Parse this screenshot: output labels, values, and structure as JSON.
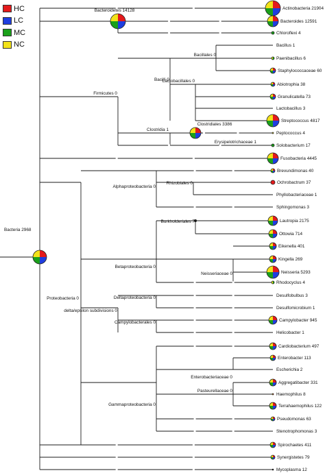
{
  "legend": [
    {
      "label": "HC",
      "color": "#e41a1c"
    },
    {
      "label": "LC",
      "color": "#1f3ee0"
    },
    {
      "label": "MC",
      "color": "#1aa01a"
    },
    {
      "label": "NC",
      "color": "#f2e21a"
    }
  ],
  "colors": {
    "HC": "#e41a1c",
    "LC": "#1f3ee0",
    "MC": "#1aa01a",
    "NC": "#f2e21a"
  },
  "root": {
    "label": "Bacteria 2968"
  },
  "internal": [
    {
      "id": "bacteroidetes",
      "label": "Bacteroidetes 14128"
    },
    {
      "id": "firmicutes",
      "label": "Firmicutes 0"
    },
    {
      "id": "bacilli",
      "label": "Bacilli 0"
    },
    {
      "id": "bacillales",
      "label": "Bacillales 0"
    },
    {
      "id": "lactobacillales",
      "label": "Lactobacillales 0"
    },
    {
      "id": "clostridia",
      "label": "Clostridia 1"
    },
    {
      "id": "clostridiales",
      "label": "Clostridiales 3386"
    },
    {
      "id": "erysipelotrichaceae",
      "label": "Erysipelotrichaceae 1"
    },
    {
      "id": "alphaproteobacteria",
      "label": "Alphaproteobacteria 0"
    },
    {
      "id": "rhizobiales",
      "label": "Rhizobiales 0"
    },
    {
      "id": "burkholderiales",
      "label": "Burkholderiales 7"
    },
    {
      "id": "betaproteobacteria",
      "label": "Betaproteobacteria 0"
    },
    {
      "id": "neisseriaceae",
      "label": "Neisseriaceae 0"
    },
    {
      "id": "proteobacteria",
      "label": "Proteobacteria 0"
    },
    {
      "id": "deltaproteobacteria",
      "label": "Deltaproteobacteria 0"
    },
    {
      "id": "delta_epsilon",
      "label": "delta/epsilon subdivisions 0"
    },
    {
      "id": "campylobacterales",
      "label": "Campylobacterales 0"
    },
    {
      "id": "enterobacteriaceae",
      "label": "Enterobacteriaceae 0"
    },
    {
      "id": "pasteurellaceae",
      "label": "Pasteurellaceae 0"
    },
    {
      "id": "gammaproteobacteria",
      "label": "Gammaproteobacteria 0"
    }
  ],
  "leaves": [
    {
      "label": "Actinobacteria 21904",
      "pie": [
        0.25,
        0.25,
        0.25,
        0.25
      ]
    },
    {
      "label": "Bacteroides 12591",
      "pie": [
        0.25,
        0.25,
        0.25,
        0.25
      ]
    },
    {
      "label": "Chloroflexi 4",
      "pie": [
        0,
        0,
        1,
        0
      ]
    },
    {
      "label": "Bacillus 1",
      "pie": [
        0,
        0,
        0,
        0
      ]
    },
    {
      "label": "Paenibacillus 6",
      "pie": [
        0,
        0,
        0.6,
        0.4
      ]
    },
    {
      "label": "Staphylococcaceae 60",
      "pie": [
        0.25,
        0.25,
        0.25,
        0.25
      ]
    },
    {
      "label": "Abiotrophia 38",
      "pie": [
        0.25,
        0.25,
        0.25,
        0.25
      ]
    },
    {
      "label": "Granulicatella 73",
      "pie": [
        0.25,
        0.25,
        0.25,
        0.25
      ]
    },
    {
      "label": "Lactobacillus 3",
      "pie": [
        0,
        0,
        0,
        0
      ]
    },
    {
      "label": "Streptococcus 4817",
      "pie": [
        0.25,
        0.25,
        0.25,
        0.25
      ]
    },
    {
      "label": "Peptococcus 4",
      "pie": [
        0,
        0,
        0,
        1
      ]
    },
    {
      "label": "Solobacterium 17",
      "pie": [
        0,
        0,
        1,
        0
      ]
    },
    {
      "label": "Fusobacteria 4445",
      "pie": [
        0.25,
        0.25,
        0.25,
        0.25
      ]
    },
    {
      "label": "Brevundimonas 40",
      "pie": [
        0.25,
        0.25,
        0.25,
        0.25
      ]
    },
    {
      "label": "Ochrobactrum 37",
      "pie": [
        1,
        0,
        0,
        0
      ]
    },
    {
      "label": "Phyllobacteriaceae 1",
      "pie": [
        0,
        0,
        0,
        0
      ]
    },
    {
      "label": "Sphingomonas 3",
      "pie": [
        0,
        0,
        0,
        0
      ]
    },
    {
      "label": "Lautropia 2175",
      "pie": [
        0.25,
        0.25,
        0.25,
        0.25
      ]
    },
    {
      "label": "Ottowia 714",
      "pie": [
        0.25,
        0.25,
        0.25,
        0.25
      ]
    },
    {
      "label": "Eikenella 401",
      "pie": [
        0.25,
        0.25,
        0.25,
        0.25
      ]
    },
    {
      "label": "Kingella 269",
      "pie": [
        0.25,
        0.25,
        0.25,
        0.25
      ]
    },
    {
      "label": "Neisseria 5293",
      "pie": [
        0.25,
        0.25,
        0.25,
        0.25
      ]
    },
    {
      "label": "Rhodocyclus 4",
      "pie": [
        0,
        0,
        0.5,
        0.5
      ]
    },
    {
      "label": "Desulfobulbus 3",
      "pie": [
        0,
        0,
        0,
        0
      ]
    },
    {
      "label": "Desulfomicrobium 1",
      "pie": [
        0,
        0,
        0,
        0
      ]
    },
    {
      "label": "Campylobacter 945",
      "pie": [
        0.25,
        0.25,
        0.25,
        0.25
      ]
    },
    {
      "label": "Helicobacter 1",
      "pie": [
        0,
        0,
        0,
        0
      ]
    },
    {
      "label": "Cardiobacterium 497",
      "pie": [
        0.25,
        0.25,
        0.25,
        0.25
      ]
    },
    {
      "label": "Enterobacter 113",
      "pie": [
        0.25,
        0.25,
        0.25,
        0.25
      ]
    },
    {
      "label": "Escherichia 2",
      "pie": [
        0,
        0,
        0,
        0
      ]
    },
    {
      "label": "Aggregatibacter 331",
      "pie": [
        0.25,
        0.25,
        0.25,
        0.25
      ]
    },
    {
      "label": "Haemophilus 8",
      "pie": [
        0.5,
        0,
        0,
        0.5
      ]
    },
    {
      "label": "Terrahaemophilus 122",
      "pie": [
        0.25,
        0.25,
        0.25,
        0.25
      ]
    },
    {
      "label": "Pseudomonas 63",
      "pie": [
        0.25,
        0.25,
        0.25,
        0.25
      ]
    },
    {
      "label": "Stenotrophomonas 3",
      "pie": [
        0,
        0,
        0,
        0
      ]
    },
    {
      "label": "Spirochaetes 411",
      "pie": [
        0.25,
        0.25,
        0.25,
        0.25
      ]
    },
    {
      "label": "Synergistetes 79",
      "pie": [
        0.25,
        0.25,
        0.25,
        0.25
      ]
    },
    {
      "label": "Mycoplasma 12",
      "pie": [
        0,
        0,
        0,
        0
      ]
    }
  ]
}
